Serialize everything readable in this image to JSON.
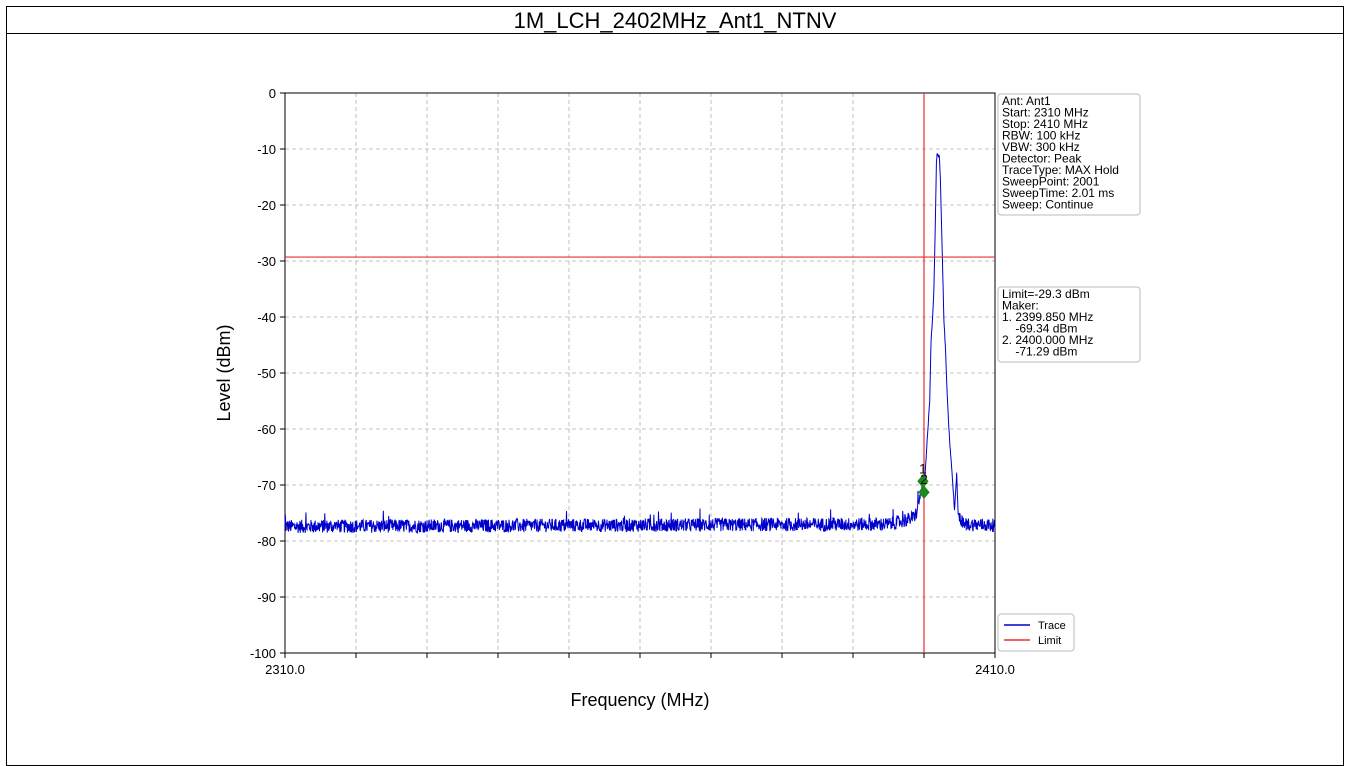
{
  "page": {
    "title": "1M_LCH_2402MHz_Ant1_NTNV"
  },
  "info_box": {
    "lines": [
      "Ant: Ant1",
      "Start: 2310 MHz",
      "Stop: 2410 MHz",
      "RBW: 100 kHz",
      "VBW: 300 kHz",
      "Detector: Peak",
      "TraceType: MAX Hold",
      "SweepPoint: 2001",
      "SweepTime: 2.01 ms",
      "Sweep: Continue"
    ]
  },
  "marker_box": {
    "lines": [
      "Limit=-29.3 dBm",
      "Maker:",
      "1. 2399.850 MHz",
      "    -69.34 dBm",
      "2. 2400.000 MHz",
      "    -71.29 dBm"
    ]
  },
  "chart_data": {
    "type": "line",
    "title": "1M_LCH_2402MHz_Ant1_NTNV",
    "xlabel": "Frequency (MHz)",
    "ylabel": "Level (dBm)",
    "xlim": [
      2310.0,
      2410.0
    ],
    "ylim": [
      -100,
      0
    ],
    "x_tick_labels": [
      "2310.0",
      "2410.0"
    ],
    "x_minor_ticks": [
      2320,
      2330,
      2340,
      2350,
      2360,
      2370,
      2380,
      2390,
      2400
    ],
    "y_ticks": [
      0,
      -10,
      -20,
      -30,
      -40,
      -50,
      -60,
      -70,
      -80,
      -90,
      -100
    ],
    "grid": true,
    "legend_position": "bottom-right",
    "series": [
      {
        "name": "Trace",
        "color": "#0000cc",
        "noise_floor_dbm": -77.2,
        "points": [
          [
            2310.0,
            -77.4
          ],
          [
            2395.0,
            -77.0
          ],
          [
            2397.0,
            -76.5
          ],
          [
            2398.5,
            -75.8
          ],
          [
            2399.0,
            -74.8
          ],
          [
            2399.85,
            -69.34
          ],
          [
            2400.0,
            -71.29
          ],
          [
            2400.3,
            -65.0
          ],
          [
            2400.8,
            -55.0
          ],
          [
            2401.0,
            -44.0
          ],
          [
            2401.2,
            -40.5
          ],
          [
            2401.4,
            -35.0
          ],
          [
            2401.6,
            -23.0
          ],
          [
            2401.75,
            -12.5
          ],
          [
            2401.85,
            -11.0
          ],
          [
            2402.0,
            -11.2
          ],
          [
            2402.15,
            -11.0
          ],
          [
            2402.3,
            -15.0
          ],
          [
            2402.6,
            -30.0
          ],
          [
            2402.8,
            -40.5
          ],
          [
            2403.0,
            -45.0
          ],
          [
            2403.3,
            -55.0
          ],
          [
            2403.6,
            -62.0
          ],
          [
            2403.9,
            -67.0
          ],
          [
            2404.3,
            -74.5
          ],
          [
            2404.6,
            -68.0
          ],
          [
            2404.8,
            -75.0
          ],
          [
            2405.5,
            -77.0
          ],
          [
            2410.0,
            -77.2
          ]
        ]
      },
      {
        "name": "Limit",
        "color": "#e8302f",
        "value": -29.3
      }
    ],
    "vertical_line": {
      "x": 2400.0,
      "color": "#e8302f"
    },
    "markers": [
      {
        "label": "1",
        "x": 2399.85,
        "y": -69.34,
        "color": "#1a8a1a"
      },
      {
        "label": "2",
        "x": 2400.0,
        "y": -71.29,
        "color": "#1a8a1a"
      }
    ]
  }
}
